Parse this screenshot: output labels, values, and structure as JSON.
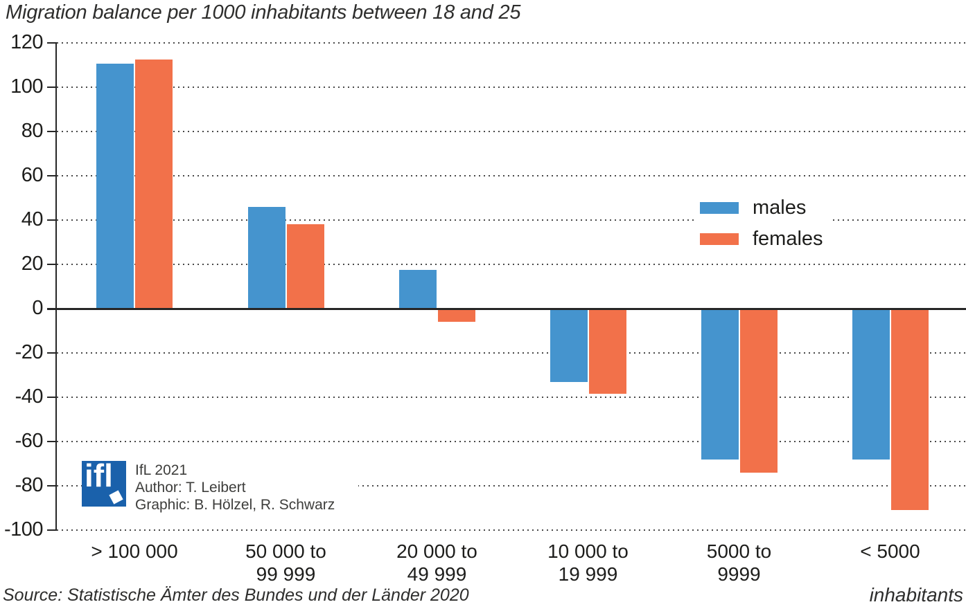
{
  "title": "Migration balance per 1000 inhabitants between 18 and 25",
  "chart_data": {
    "type": "bar",
    "categories": [
      [
        "> 100 000"
      ],
      [
        "50 000 to",
        "99 999"
      ],
      [
        "20 000 to",
        "49 999"
      ],
      [
        "10 000 to",
        "19 999"
      ],
      [
        "5000 to",
        "9999"
      ],
      [
        "< 5000"
      ]
    ],
    "series": [
      {
        "name": "males",
        "color": "#4594ce",
        "values": [
          110.5,
          46,
          17.5,
          -33,
          -68,
          -68
        ]
      },
      {
        "name": "females",
        "color": "#f2714a",
        "values": [
          112.5,
          38,
          -6,
          -38.5,
          -74,
          -91
        ]
      }
    ],
    "title": "Migration balance per 1000 inhabitants between 18 and 25",
    "xlabel": "inhabitants",
    "ylabel": "",
    "ylim": [
      -100,
      120
    ],
    "ytick_step": 20,
    "grid": "dotted-horizontal",
    "legend_position": "center-right",
    "zero_baseline": true
  },
  "legend": {
    "items": [
      {
        "label": "males",
        "color": "#4594ce"
      },
      {
        "label": "females",
        "color": "#f2714a"
      }
    ]
  },
  "branding": {
    "logo_text": "ifl",
    "logo_color": "#1a61ab",
    "lines": [
      "IfL 2021",
      "Author: T. Leibert",
      "Graphic: B. Hölzel, R. Schwarz"
    ]
  },
  "footer": {
    "source": "Source: Statistische Ämter des Bundes und der Länder 2020",
    "axis_unit": "inhabitants"
  },
  "colors": {
    "male_bar": "#4594ce",
    "female_bar": "#f2714a",
    "axis": "#262626",
    "grid_dots": "#474747",
    "text": "#1d1d1b",
    "logo_blue": "#1a61ab"
  }
}
